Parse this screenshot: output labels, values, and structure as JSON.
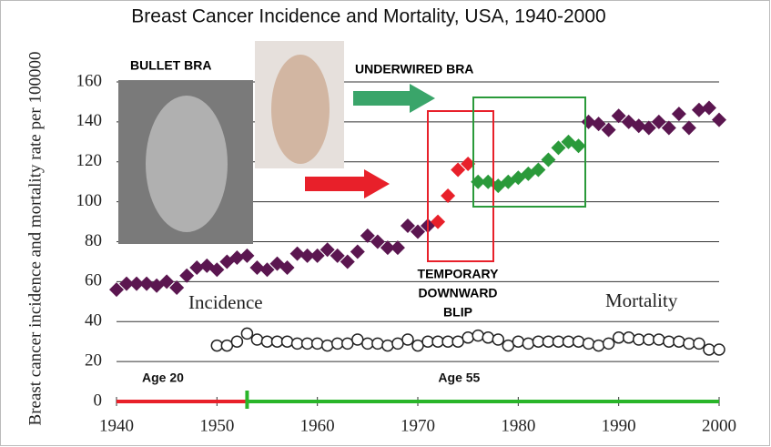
{
  "chart_data": {
    "type": "scatter",
    "title": "Breast Cancer Incidence and Mortality, USA, 1940-2000",
    "y_label": "Breast cancer incidence and mortality rate per 100000",
    "xlim": [
      1940,
      2000
    ],
    "xticks": [
      1940,
      1950,
      1960,
      1970,
      1980,
      1990,
      2000
    ],
    "ylim": [
      0,
      160
    ],
    "yticks": [
      0,
      20,
      40,
      60,
      80,
      100,
      120,
      140,
      160
    ],
    "grid": true,
    "series": [
      {
        "marker": "diamond",
        "x": [
          1940,
          1941,
          1942,
          1943,
          1944,
          1945,
          1946,
          1947,
          1948,
          1949,
          1950,
          1951,
          1952,
          1953,
          1954,
          1955,
          1956,
          1957,
          1958,
          1959,
          1960,
          1961,
          1962,
          1963,
          1964,
          1965,
          1966,
          1967,
          1968,
          1969,
          1970,
          1971,
          1972,
          1973,
          1974,
          1975,
          1976,
          1977,
          1978,
          1979,
          1980,
          1981,
          1982,
          1983,
          1984,
          1985,
          1986,
          1987,
          1988,
          1989,
          1990,
          1991,
          1992,
          1993,
          1994,
          1995,
          1996,
          1997,
          1998,
          1999,
          2000
        ],
        "values": [
          56,
          59,
          59,
          59,
          58,
          60,
          57,
          63,
          67,
          68,
          66,
          70,
          72,
          73,
          67,
          66,
          69,
          67,
          74,
          73,
          73,
          76,
          73,
          70,
          75,
          83,
          80,
          77,
          77,
          88,
          85,
          88,
          90,
          103,
          116,
          119,
          110,
          110,
          108,
          110,
          112,
          114,
          116,
          121,
          127,
          130,
          128,
          140,
          139,
          136,
          143,
          140,
          138,
          137,
          140,
          137,
          144,
          137,
          146,
          147,
          141
        ],
        "point_colors": [
          "#5b1650",
          "#5b1650",
          "#5b1650",
          "#5b1650",
          "#5b1650",
          "#5b1650",
          "#5b1650",
          "#5b1650",
          "#5b1650",
          "#5b1650",
          "#5b1650",
          "#5b1650",
          "#5b1650",
          "#5b1650",
          "#5b1650",
          "#5b1650",
          "#5b1650",
          "#5b1650",
          "#5b1650",
          "#5b1650",
          "#5b1650",
          "#5b1650",
          "#5b1650",
          "#5b1650",
          "#5b1650",
          "#5b1650",
          "#5b1650",
          "#5b1650",
          "#5b1650",
          "#5b1650",
          "#5b1650",
          "#5b1650",
          "#e8202a",
          "#e8202a",
          "#e8202a",
          "#e8202a",
          "#2a9a3a",
          "#2a9a3a",
          "#2a9a3a",
          "#2a9a3a",
          "#2a9a3a",
          "#2a9a3a",
          "#2a9a3a",
          "#2a9a3a",
          "#2a9a3a",
          "#2a9a3a",
          "#2a9a3a",
          "#5b1650",
          "#5b1650",
          "#5b1650",
          "#5b1650",
          "#5b1650",
          "#5b1650",
          "#5b1650",
          "#5b1650",
          "#5b1650",
          "#5b1650",
          "#5b1650",
          "#5b1650",
          "#5b1650",
          "#5b1650"
        ]
      },
      {
        "marker": "open-circle",
        "color": "#222222",
        "x": [
          1950,
          1951,
          1952,
          1953,
          1954,
          1955,
          1956,
          1957,
          1958,
          1959,
          1960,
          1961,
          1962,
          1963,
          1964,
          1965,
          1966,
          1967,
          1968,
          1969,
          1970,
          1971,
          1972,
          1973,
          1974,
          1975,
          1976,
          1977,
          1978,
          1979,
          1980,
          1981,
          1982,
          1983,
          1984,
          1985,
          1986,
          1987,
          1988,
          1989,
          1990,
          1991,
          1992,
          1993,
          1994,
          1995,
          1996,
          1997,
          1998,
          1999,
          2000
        ],
        "values": [
          28,
          28,
          30,
          34,
          31,
          30,
          30,
          30,
          29,
          29,
          29,
          28,
          29,
          29,
          31,
          29,
          29,
          28,
          29,
          31,
          28,
          30,
          30,
          30,
          30,
          32,
          33,
          32,
          31,
          28,
          30,
          29,
          30,
          30,
          30,
          30,
          30,
          29,
          28,
          29,
          32,
          32,
          31,
          31,
          31,
          30,
          30,
          29,
          29,
          26,
          26
        ]
      }
    ],
    "age_segments": [
      {
        "label": "Age 20",
        "from": 1940,
        "to": 1953,
        "color": "#e8202a"
      },
      {
        "label": "Age 55",
        "from": 1953,
        "to": 2000,
        "color": "#2ab52a"
      }
    ],
    "annotations": {
      "bullet_bra": "BULLET BRA",
      "underwired_bra": "UNDERWIRED BRA",
      "blip": [
        "TEMPORARY",
        "DOWNWARD",
        "BLIP"
      ],
      "incidence": "Incidence",
      "mortality": "Mortality"
    }
  }
}
